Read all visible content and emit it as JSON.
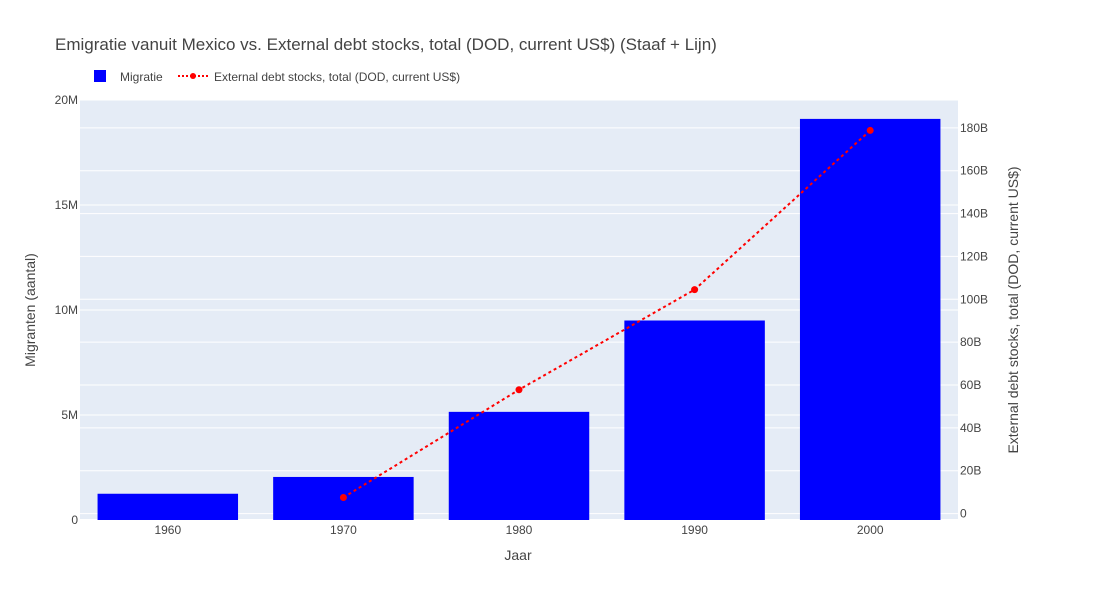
{
  "chart_data": {
    "type": "bar+line",
    "title": "Emigratie vanuit Mexico vs. External debt stocks, total (DOD, current US$) (Staaf + Lijn)",
    "xlabel": "Jaar",
    "ylabel_left": "Migranten (aantal)",
    "ylabel_right": "External debt stocks, total (DOD, current US$)",
    "categories": [
      "1960",
      "1970",
      "1980",
      "1990",
      "2000"
    ],
    "legend_position": "top-left",
    "grid": true,
    "y_left": {
      "range": [
        0,
        20000000
      ],
      "ticks": [
        0,
        5000000,
        10000000,
        15000000,
        20000000
      ],
      "tick_labels": [
        "0",
        "5M",
        "10M",
        "15M",
        "20M"
      ]
    },
    "y_right": {
      "range": [
        -3000000000,
        193000000000
      ],
      "ticks": [
        0,
        20000000000,
        40000000000,
        60000000000,
        80000000000,
        100000000000,
        120000000000,
        140000000000,
        160000000000,
        180000000000
      ],
      "tick_labels": [
        "0",
        "20B",
        "40B",
        "60B",
        "80B",
        "100B",
        "120B",
        "140B",
        "160B",
        "180B"
      ]
    },
    "series": [
      {
        "name": "Migratie",
        "kind": "bar",
        "axis": "left",
        "color": "#0000ff",
        "values": [
          1250000,
          2050000,
          5150000,
          9500000,
          19100000
        ]
      },
      {
        "name": "External debt stocks, total (DOD, current US$)",
        "kind": "line",
        "axis": "right",
        "color": "#ff0000",
        "line_style": "dotted",
        "x": [
          "1970",
          "1980",
          "1990",
          "2000"
        ],
        "values": [
          7500000000,
          57800000000,
          104500000000,
          178800000000
        ]
      }
    ]
  }
}
